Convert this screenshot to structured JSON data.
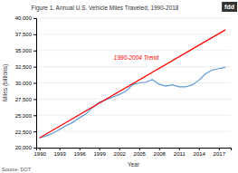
{
  "chart_data": {
    "type": "line",
    "title": "Figure 1. Annual U.S. Vehicle Miles Traveled, 1990-2018",
    "xlabel": "Year",
    "ylabel": "Miles (billions)",
    "source": "Source: DOT",
    "logo": "fdd",
    "x": [
      1990,
      1991,
      1992,
      1993,
      1994,
      1995,
      1996,
      1997,
      1998,
      1999,
      2000,
      2001,
      2002,
      2003,
      2004,
      2005,
      2006,
      2007,
      2008,
      2009,
      2010,
      2011,
      2012,
      2013,
      2014,
      2015,
      2016,
      2017,
      2018
    ],
    "series": [
      {
        "color": "#5b9bd5",
        "values": [
          21500,
          21800,
          22200,
          22800,
          23400,
          23900,
          24600,
          25200,
          26200,
          27000,
          27400,
          27800,
          28200,
          28700,
          29700,
          30000,
          30100,
          30500,
          29800,
          29500,
          29700,
          29400,
          29400,
          29700,
          30400,
          31400,
          32000,
          32200,
          32400
        ]
      },
      {
        "color": "#ff0000",
        "x": [
          1990,
          2018
        ],
        "values": [
          21500,
          38200
        ]
      }
    ],
    "annotations": [
      {
        "text": "1990-2004 Trend",
        "x": 2001.2,
        "y": 33600
      }
    ],
    "xlim": [
      1989.5,
      2018.8
    ],
    "xticks": [
      1990,
      1993,
      1996,
      1999,
      2002,
      2005,
      2008,
      2011,
      2014,
      2017
    ],
    "ylim": [
      20000,
      40000
    ],
    "yticks": [
      {
        "value": 20000,
        "label": "20,000"
      },
      {
        "value": 22500,
        "label": "22,500"
      },
      {
        "value": 25000,
        "label": "25,000"
      },
      {
        "value": 27500,
        "label": "27,500"
      },
      {
        "value": 30000,
        "label": "30,000"
      },
      {
        "value": 32500,
        "label": "32,500"
      },
      {
        "value": 35000,
        "label": "35,000"
      },
      {
        "value": 37500,
        "label": "37,500"
      },
      {
        "value": 40000,
        "label": "40,000"
      }
    ],
    "grid": true
  }
}
